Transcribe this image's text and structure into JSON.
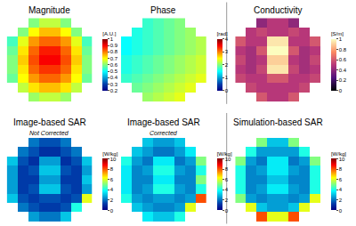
{
  "chart_data": [
    {
      "type": "heatmap",
      "title": "Magnitude",
      "color": "jet",
      "colorbar": {
        "title": "[A.U.]",
        "range": [
          0.2,
          1
        ],
        "ticks": [
          0.2,
          0.3,
          0.4,
          0.5,
          0.6,
          0.7,
          0.8,
          0.9,
          1
        ]
      },
      "z": [
        [
          null,
          null,
          0.6,
          0.65,
          0.65,
          0.6,
          null,
          null
        ],
        [
          null,
          0.6,
          0.7,
          0.75,
          0.75,
          0.7,
          0.6,
          null
        ],
        [
          0.55,
          0.68,
          0.78,
          0.82,
          0.82,
          0.78,
          0.68,
          0.55
        ],
        [
          0.58,
          0.72,
          0.82,
          0.88,
          0.88,
          0.82,
          0.72,
          0.58
        ],
        [
          0.6,
          0.74,
          0.84,
          0.9,
          0.9,
          0.84,
          0.74,
          0.6
        ],
        [
          0.6,
          0.72,
          0.82,
          0.86,
          0.86,
          0.82,
          0.72,
          0.6
        ],
        [
          0.58,
          0.7,
          0.78,
          0.82,
          0.82,
          0.78,
          0.7,
          0.58
        ],
        [
          null,
          0.65,
          0.72,
          0.75,
          0.75,
          0.72,
          0.65,
          null
        ],
        [
          null,
          null,
          0.62,
          0.65,
          0.65,
          0.62,
          null,
          null
        ]
      ]
    },
    {
      "type": "heatmap",
      "title": "Phase",
      "color": "jet",
      "colorbar": {
        "title": "[rad]",
        "range": [
          0,
          4
        ],
        "ticks": [
          0,
          1,
          2,
          3,
          4
        ]
      },
      "z": [
        [
          null,
          null,
          1.7,
          1.8,
          1.9,
          2.0,
          null,
          null
        ],
        [
          null,
          1.6,
          1.7,
          1.8,
          1.9,
          2.0,
          2.1,
          null
        ],
        [
          1.5,
          1.6,
          1.7,
          1.8,
          1.9,
          2.0,
          2.1,
          2.2
        ],
        [
          1.5,
          1.6,
          1.7,
          1.8,
          1.9,
          2.0,
          2.1,
          2.2
        ],
        [
          1.6,
          1.7,
          1.8,
          1.9,
          2.0,
          2.1,
          2.2,
          2.3
        ],
        [
          1.6,
          1.7,
          1.8,
          1.9,
          2.0,
          2.1,
          2.2,
          2.3
        ],
        [
          1.7,
          1.8,
          1.9,
          2.0,
          2.1,
          2.2,
          2.3,
          2.4
        ],
        [
          null,
          1.9,
          2.0,
          2.1,
          2.2,
          2.3,
          2.4,
          null
        ],
        [
          null,
          null,
          2.1,
          2.2,
          2.3,
          2.4,
          null,
          null
        ]
      ]
    },
    {
      "type": "heatmap",
      "title": "Conductivity",
      "color": "magma",
      "colorbar": {
        "title": "[S/m]",
        "range": [
          0,
          1
        ],
        "ticks": [
          0,
          0.2,
          0.4,
          0.6,
          0.8,
          1
        ]
      },
      "z": [
        [
          null,
          null,
          0.4,
          0.5,
          0.5,
          0.4,
          null,
          null
        ],
        [
          null,
          0.5,
          0.55,
          0.5,
          0.5,
          0.55,
          0.5,
          null
        ],
        [
          0.6,
          0.5,
          0.5,
          0.95,
          0.95,
          0.5,
          0.5,
          0.6
        ],
        [
          0.5,
          0.45,
          0.6,
          1,
          1,
          0.6,
          0.45,
          0.5
        ],
        [
          0.55,
          0.45,
          0.5,
          0.9,
          0.9,
          0.5,
          0.45,
          0.55
        ],
        [
          0.5,
          0.45,
          0.55,
          0.95,
          0.95,
          0.55,
          0.45,
          0.5
        ],
        [
          0.55,
          0.5,
          0.5,
          0.6,
          0.6,
          0.5,
          0.5,
          0.55
        ],
        [
          null,
          0.55,
          0.5,
          0.5,
          0.5,
          0.5,
          0.55,
          null
        ],
        [
          null,
          null,
          0.6,
          0.5,
          0.5,
          0.6,
          null,
          null
        ]
      ]
    },
    {
      "type": "heatmap",
      "title": "Image-based SAR",
      "subtitle": "Not Corrected",
      "color": "jet",
      "colorbar": {
        "title": "[W/kg]",
        "range": [
          0,
          10
        ],
        "ticks": [
          0,
          2,
          4,
          6,
          8,
          10
        ]
      },
      "z": [
        [
          null,
          null,
          2,
          1.5,
          1.5,
          2,
          null,
          null
        ],
        [
          null,
          2,
          1.5,
          1,
          1,
          1.5,
          2,
          null
        ],
        [
          3,
          1.5,
          1,
          2.5,
          2.5,
          1,
          1.5,
          3
        ],
        [
          2.5,
          1.2,
          1.5,
          3,
          3,
          1.5,
          1.2,
          2.5
        ],
        [
          2.5,
          1.2,
          1.2,
          2.5,
          2.5,
          1.2,
          1.2,
          3
        ],
        [
          2.5,
          1.2,
          1.5,
          3,
          3,
          1.5,
          1.2,
          2.5
        ],
        [
          3,
          1.5,
          1.2,
          1.5,
          1.5,
          1.2,
          1.5,
          6
        ],
        [
          null,
          2,
          1.5,
          1.2,
          1.2,
          1.5,
          4,
          null
        ],
        [
          null,
          null,
          2.5,
          2,
          2,
          3,
          null,
          null
        ]
      ]
    },
    {
      "type": "heatmap",
      "title": "Image-based SAR",
      "subtitle": "Corrected",
      "color": "jet",
      "colorbar": {
        "title": "[W/kg]",
        "range": [
          0,
          10
        ],
        "ticks": [
          0,
          2,
          4,
          6,
          8,
          10
        ]
      },
      "z": [
        [
          null,
          null,
          3,
          2.5,
          2.5,
          3,
          null,
          null
        ],
        [
          null,
          3,
          2.5,
          2,
          2,
          2.5,
          3.5,
          null
        ],
        [
          4,
          2.5,
          2,
          3.5,
          3.5,
          2,
          2.5,
          5
        ],
        [
          3.5,
          2.2,
          2.5,
          4,
          4,
          2.5,
          2.2,
          4
        ],
        [
          3.5,
          2.2,
          2.2,
          3.5,
          3.5,
          2.2,
          2.2,
          5
        ],
        [
          3.5,
          2.2,
          2.5,
          4,
          4,
          2.5,
          2.2,
          4
        ],
        [
          4,
          2.5,
          2.2,
          2.5,
          2.5,
          2.2,
          2.5,
          8
        ],
        [
          null,
          3,
          2.5,
          2.2,
          2.2,
          2.5,
          6,
          null
        ],
        [
          null,
          null,
          3.5,
          3,
          3,
          4,
          null,
          null
        ]
      ]
    },
    {
      "type": "heatmap",
      "title": "Simulation-based SAR",
      "color": "jet",
      "colorbar": {
        "title": "[W/kg]",
        "range": [
          0,
          10
        ],
        "ticks": [
          0,
          2,
          4,
          6,
          8,
          10
        ]
      },
      "z": [
        [
          null,
          null,
          5,
          3,
          3,
          5,
          null,
          null
        ],
        [
          null,
          4,
          2.5,
          2.5,
          2.5,
          2.5,
          4,
          null
        ],
        [
          5,
          2.5,
          2,
          3.5,
          3.5,
          2,
          2.5,
          5
        ],
        [
          4,
          2.2,
          2.5,
          3.5,
          3.5,
          2.5,
          2.2,
          4
        ],
        [
          4,
          2.2,
          2.2,
          3,
          3,
          2.2,
          2.2,
          4
        ],
        [
          4,
          2.2,
          2.5,
          3.5,
          3.5,
          2.5,
          2.2,
          4
        ],
        [
          5,
          2.5,
          2.2,
          2.5,
          2.5,
          2.2,
          2.5,
          6
        ],
        [
          null,
          6,
          3,
          2.5,
          2.5,
          3,
          6,
          null
        ],
        [
          null,
          null,
          8,
          6,
          6,
          8,
          null,
          null
        ]
      ]
    }
  ]
}
